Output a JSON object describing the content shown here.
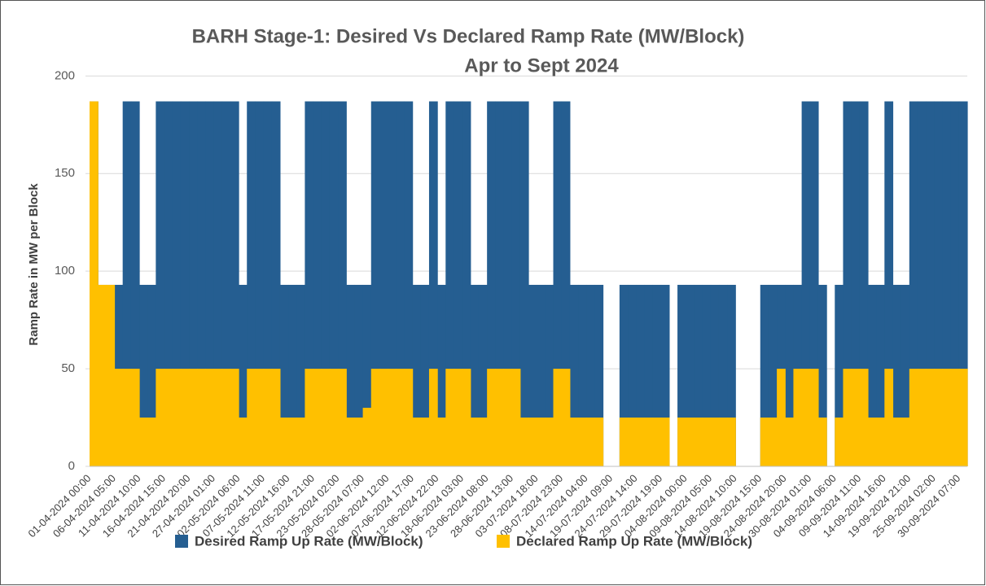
{
  "chart_data": {
    "type": "area",
    "title": "BARH Stage-1: Desired Vs Declared Ramp Rate (MW/Block)",
    "subtitle": "Apr to Sept 2024",
    "y_label": "Ramp Rate in MW per Block",
    "categories": [
      "01-04-2024 00:00",
      null,
      null,
      "06-04-2024 05:00",
      null,
      null,
      "11-04-2024 10:00",
      null,
      null,
      "16-04-2024 15:00",
      null,
      null,
      "21-04-2024 20:00",
      null,
      null,
      "27-04-2024 01:00",
      null,
      null,
      "02-05-2024 06:00",
      null,
      null,
      "07-05-2024 11:00",
      null,
      null,
      "12-05-2024 16:00",
      null,
      null,
      "17-05-2024 21:00",
      null,
      null,
      "23-05-2024 02:00",
      null,
      null,
      "28-05-2024 07:00",
      null,
      null,
      "02-06-2024 12:00",
      null,
      null,
      "07-06-2024 17:00",
      null,
      null,
      "12-06-2024 22:00",
      null,
      null,
      "18-06-2024 03:00",
      null,
      null,
      "23-06-2024 08:00",
      null,
      null,
      "28-06-2024 13:00",
      null,
      null,
      "03-07-2024 18:00",
      null,
      null,
      "08-07-2024 23:00",
      null,
      null,
      "14-07-2024 04:00",
      null,
      null,
      "19-07-2024 09:00",
      null,
      null,
      "24-07-2024 14:00",
      null,
      null,
      "29-07-2024 19:00",
      null,
      null,
      "04-08-2024 00:00",
      null,
      null,
      "09-08-2024 05:00",
      null,
      null,
      "14-08-2024 10:00",
      null,
      null,
      "19-08-2024 15:00",
      null,
      null,
      "24-08-2024 20:00",
      null,
      null,
      "30-08-2024 01:00",
      null,
      null,
      "04-09-2024 06:00",
      null,
      null,
      "09-09-2024 11:00",
      null,
      null,
      "14-09-2024 16:00",
      null,
      null,
      "19-09-2024 21:00",
      null,
      null,
      "25-09-2024 02:00",
      null,
      null,
      "30-09-2024 07:00"
    ],
    "series": [
      {
        "name": "Desired Ramp Up Rate (MW/Block)",
        "color": "#255e91",
        "values": [
          187,
          93,
          93,
          93,
          187,
          187,
          93,
          93,
          187,
          187,
          187,
          187,
          187,
          187,
          187,
          187,
          187,
          187,
          93,
          187,
          187,
          187,
          187,
          93,
          93,
          93,
          187,
          187,
          187,
          187,
          187,
          93,
          93,
          93,
          187,
          187,
          187,
          187,
          187,
          93,
          93,
          187,
          93,
          187,
          187,
          187,
          93,
          93,
          187,
          187,
          187,
          187,
          187,
          93,
          93,
          93,
          187,
          187,
          93,
          93,
          93,
          93,
          0,
          0,
          93,
          93,
          93,
          93,
          93,
          93,
          0,
          93,
          93,
          93,
          93,
          93,
          93,
          93,
          0,
          0,
          0,
          93,
          93,
          93,
          93,
          93,
          187,
          187,
          93,
          0,
          93,
          187,
          187,
          187,
          93,
          93,
          187,
          93,
          93,
          187,
          187,
          187,
          187,
          187,
          187,
          187
        ]
      },
      {
        "name": "Declared Ramp Up Rate (MW/Block)",
        "color": "#ffc000",
        "values": [
          187,
          93,
          93,
          50,
          50,
          50,
          25,
          25,
          50,
          50,
          50,
          50,
          50,
          50,
          50,
          50,
          50,
          50,
          25,
          50,
          50,
          50,
          50,
          25,
          25,
          25,
          50,
          50,
          50,
          50,
          50,
          25,
          25,
          30,
          50,
          50,
          50,
          50,
          50,
          25,
          25,
          50,
          25,
          50,
          50,
          50,
          25,
          25,
          50,
          50,
          50,
          50,
          25,
          25,
          25,
          25,
          50,
          50,
          25,
          25,
          25,
          25,
          0,
          0,
          25,
          25,
          25,
          25,
          25,
          25,
          0,
          25,
          25,
          25,
          25,
          25,
          25,
          25,
          0,
          0,
          0,
          25,
          25,
          50,
          25,
          50,
          50,
          50,
          25,
          0,
          25,
          50,
          50,
          50,
          25,
          25,
          50,
          25,
          25,
          50,
          50,
          50,
          50,
          50,
          50,
          50
        ]
      }
    ],
    "ylim": [
      0,
      216
    ],
    "yticks": [
      0,
      50,
      100,
      150,
      200
    ],
    "grid": true,
    "legend": "bottom"
  }
}
